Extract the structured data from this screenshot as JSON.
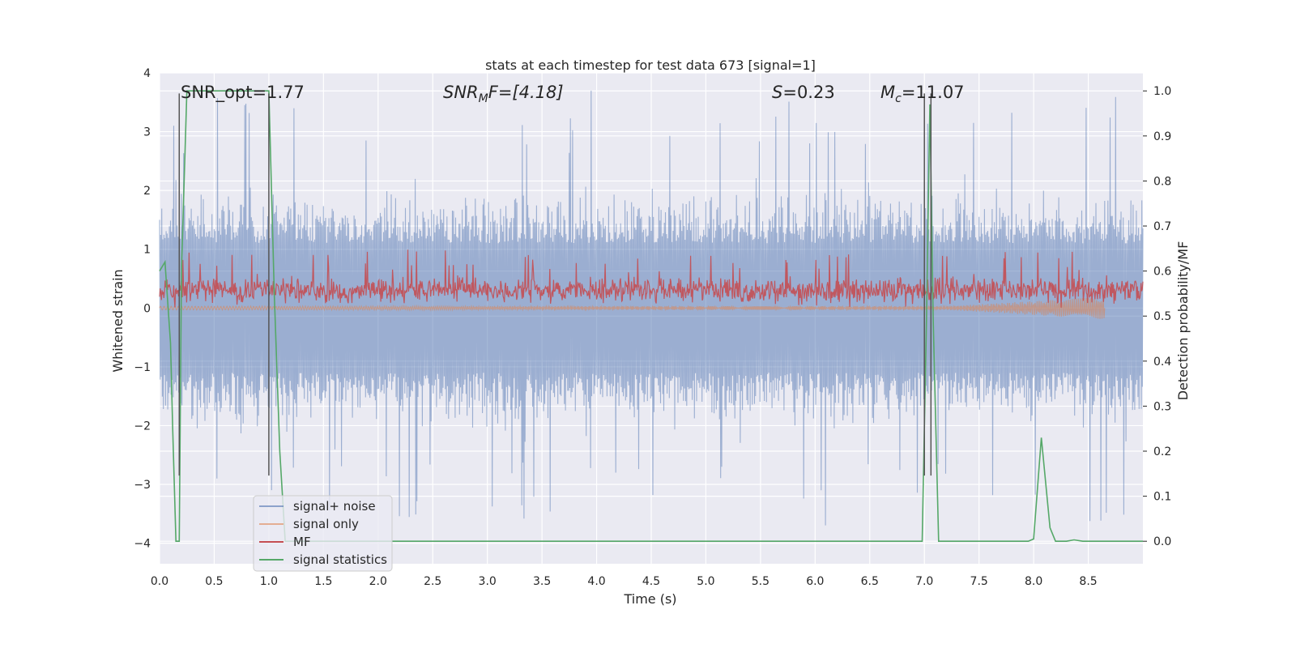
{
  "chart_data": {
    "type": "line",
    "title": "stats at each timestep for test data 673 [signal=1]",
    "xlabel": "Time (s)",
    "ylabel": "Whitened strain",
    "ylabel_right": "Detection probability/MF",
    "xlim": [
      0,
      9.0
    ],
    "ylim": [
      -4.35,
      4.0
    ],
    "ylim_right": [
      -0.05,
      1.04
    ],
    "x_ticks": [
      "0.0",
      "0.5",
      "1.0",
      "1.5",
      "2.0",
      "2.5",
      "3.0",
      "3.5",
      "4.0",
      "4.5",
      "5.0",
      "5.5",
      "6.0",
      "6.5",
      "7.0",
      "7.5",
      "8.0",
      "8.5"
    ],
    "y_ticks": [
      "4",
      "3",
      "2",
      "1",
      "0",
      "−1",
      "−2",
      "−3",
      "−4"
    ],
    "y_ticks_right": [
      "1.0",
      "0.9",
      "0.8",
      "0.7",
      "0.6",
      "0.5",
      "0.4",
      "0.3",
      "0.2",
      "0.1",
      "0.0"
    ],
    "grid": true,
    "legend_position": "lower-left",
    "annotations": {
      "snr_opt": "SNR_opt=1.77",
      "snr_mf_sym": "SNR",
      "snr_mf_sub": "M",
      "snr_mf_rest": "F=[4.18]",
      "s_sym": "S",
      "s_rest": "=0.23",
      "mc_sym": "M",
      "mc_sub": "c",
      "mc_rest": "=11.07"
    },
    "vertical_markers": [
      0.18,
      1.0,
      7.0,
      7.06
    ],
    "series": [
      {
        "name": "signal+ noise",
        "color": "#4c72b0",
        "style": "dense noise band, approx ±2 with spikes to ±3.6"
      },
      {
        "name": "signal only",
        "color": "#dd8452",
        "style": "small chirp near 0, growing after x=7.2 to about -0.2 at x=8.65"
      },
      {
        "name": "MF",
        "color": "#c44e52",
        "style": "noise band between about 0 and 0.9"
      },
      {
        "name": "signal statistics",
        "color": "#55a868",
        "axis": "right",
        "x": [
          0.0,
          0.05,
          0.1,
          0.12,
          0.15,
          0.18,
          0.2,
          0.25,
          1.0,
          1.05,
          1.1,
          1.15,
          6.98,
          7.02,
          7.05,
          7.08,
          7.1,
          7.13,
          7.7,
          7.95,
          8.0,
          8.07,
          8.15,
          8.2,
          8.3,
          8.37,
          8.45,
          9.0
        ],
        "values": [
          0.6,
          0.62,
          0.44,
          0.25,
          0.0,
          0.0,
          0.6,
          1.0,
          1.0,
          0.55,
          0.2,
          0.0,
          0.0,
          0.5,
          0.97,
          0.5,
          0.3,
          0.0,
          0.0,
          0.0,
          0.005,
          0.23,
          0.03,
          0.0,
          0.0,
          0.003,
          0.0,
          0.0
        ]
      }
    ]
  }
}
